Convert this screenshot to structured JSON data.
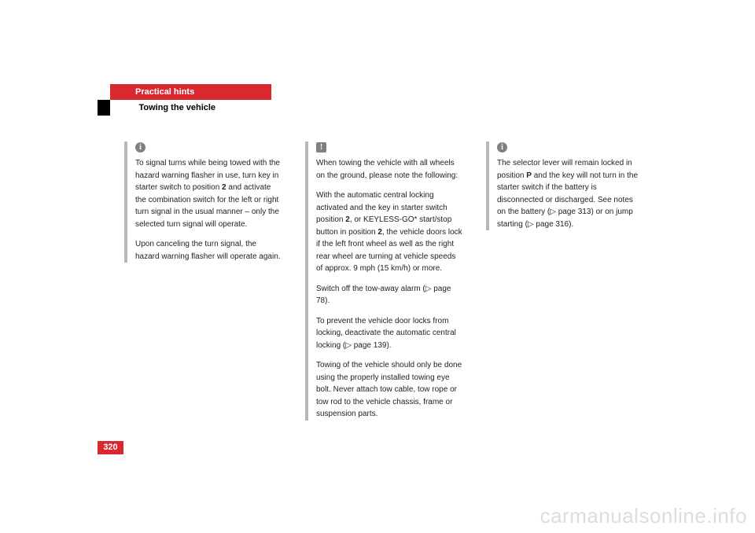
{
  "header": {
    "section": "Practical hints",
    "subsection": "Towing the vehicle"
  },
  "col1": {
    "icon": "i",
    "p1": "To signal turns while being towed with the hazard warning flasher in use, turn key in starter switch to position ",
    "p1b": "2",
    "p1c": " and activate the combination switch for the left or right turn signal in the usual manner – only the selected turn signal will operate.",
    "p2": "Upon canceling the turn signal, the hazard warning flasher will operate again."
  },
  "col2": {
    "icon": "!",
    "p1": "When towing the vehicle with all wheels on the ground, please note the following:",
    "p2a": "With the automatic central locking activated and the key in starter switch position ",
    "p2b": "2",
    "p2c": ", or KEYLESS-GO* start/stop button in position ",
    "p2d": "2",
    "p2e": ", the vehicle doors lock if the left front wheel as well as the right rear wheel are turning at vehicle speeds of approx. 9 mph (15 km/h) or more.",
    "p3a": "Switch off the tow-away alarm (",
    "p3b": "▷",
    "p3c": " page 78).",
    "p4a": "To prevent the vehicle door locks from locking, deactivate the automatic central locking (",
    "p4b": "▷",
    "p4c": " page 139).",
    "p5": "Towing of the vehicle should only be done using the properly installed towing eye bolt. Never attach tow cable, tow rope or tow rod to the vehicle chassis, frame or suspension parts."
  },
  "col3": {
    "icon": "i",
    "p1a": "The selector lever will remain locked in position ",
    "p1b": "P",
    "p1c": " and the key will not turn in the starter switch if the battery is disconnected or discharged. See notes on the battery (",
    "p1d": "▷",
    "p1e": " page 313) or on jump starting (",
    "p1f": "▷",
    "p1g": " page 316)."
  },
  "page_number": "320",
  "watermark": "carmanualsonline.info"
}
